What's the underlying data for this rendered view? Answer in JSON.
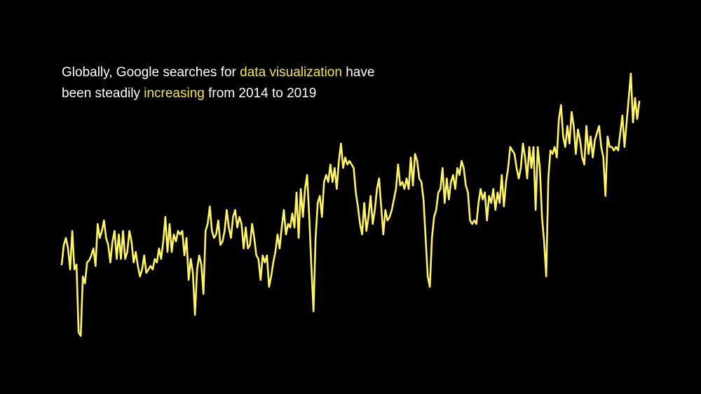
{
  "chart_data": {
    "type": "line",
    "title_lines": [
      [
        {
          "text": "Globally, Google searches for ",
          "color": "#ffffff"
        },
        {
          "text": "data visualization",
          "color": "#f7e84a"
        },
        {
          "text": " have",
          "color": "#ffffff"
        }
      ],
      [
        {
          "text": "been steadily ",
          "color": "#ffffff"
        },
        {
          "text": "increasing",
          "color": "#f7e84a"
        },
        {
          "text": " from 2014 to 2019",
          "color": "#ffffff"
        }
      ]
    ],
    "color": "#fff466",
    "ylim": [
      0,
      400
    ],
    "values": [
      122,
      150,
      160,
      145,
      115,
      170,
      115,
      122,
      25,
      20,
      105,
      95,
      125,
      128,
      135,
      145,
      120,
      180,
      160,
      170,
      185,
      160,
      150,
      125,
      155,
      170,
      130,
      165,
      130,
      170,
      130,
      140,
      170,
      155,
      125,
      140,
      120,
      105,
      115,
      135,
      110,
      115,
      120,
      115,
      130,
      125,
      145,
      130,
      155,
      190,
      140,
      180,
      140,
      165,
      155,
      170,
      165,
      170,
      135,
      160,
      100,
      130,
      110,
      50,
      115,
      135,
      122,
      80,
      170,
      180,
      205,
      170,
      160,
      165,
      185,
      150,
      155,
      170,
      200,
      175,
      160,
      190,
      200,
      175,
      190,
      180,
      145,
      175,
      145,
      150,
      180,
      160,
      135,
      130,
      100,
      135,
      125,
      135,
      90,
      105,
      125,
      140,
      165,
      145,
      175,
      200,
      165,
      180,
      175,
      195,
      175,
      225,
      160,
      230,
      190,
      230,
      250,
      190,
      120,
      55,
      160,
      210,
      220,
      190,
      240,
      250,
      240,
      265,
      240,
      260,
      230,
      270,
      295,
      260,
      275,
      265,
      270,
      265,
      260,
      225,
      205,
      180,
      165,
      210,
      170,
      190,
      220,
      180,
      200,
      230,
      245,
      205,
      165,
      200,
      185,
      190,
      200,
      215,
      230,
      265,
      235,
      240,
      230,
      245,
      230,
      275,
      235,
      280,
      270,
      245,
      240,
      215,
      160,
      105,
      90,
      160,
      190,
      200,
      225,
      230,
      260,
      210,
      245,
      215,
      240,
      250,
      230,
      260,
      250,
      270,
      260,
      235,
      225,
      185,
      180,
      185,
      180,
      210,
      230,
      215,
      225,
      185,
      220,
      210,
      230,
      200,
      225,
      210,
      250,
      205,
      240,
      260,
      290,
      285,
      280,
      260,
      245,
      260,
      295,
      275,
      245,
      290,
      260,
      290,
      200,
      290,
      260,
      190,
      155,
      105,
      245,
      285,
      280,
      290,
      275,
      330,
      350,
      305,
      290,
      320,
      295,
      340,
      320,
      280,
      315,
      300,
      275,
      265,
      320,
      280,
      305,
      275,
      300,
      310,
      320,
      290,
      275,
      220,
      305,
      290,
      290,
      285,
      290,
      285,
      310,
      335,
      290,
      325,
      360,
      395,
      325,
      360,
      330,
      355
    ]
  }
}
